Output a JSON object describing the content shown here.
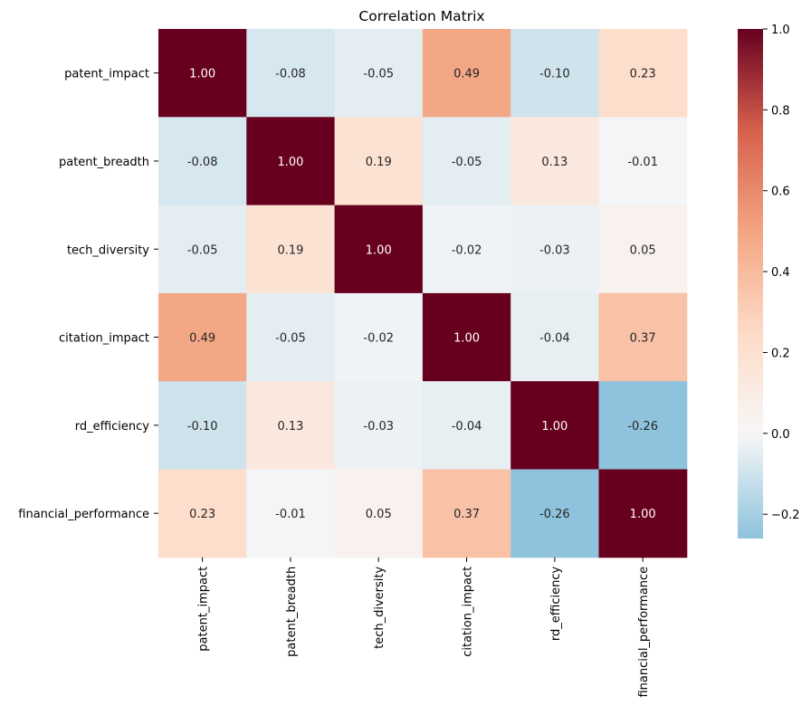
{
  "chart_data": {
    "type": "heatmap",
    "title": "Correlation Matrix",
    "xlabel": "",
    "ylabel": "",
    "row_labels": [
      "patent_impact",
      "patent_breadth",
      "tech_diversity",
      "citation_impact",
      "rd_efficiency",
      "financial_performance"
    ],
    "col_labels": [
      "patent_impact",
      "patent_breadth",
      "tech_diversity",
      "citation_impact",
      "rd_efficiency",
      "financial_performance"
    ],
    "values": [
      [
        1.0,
        -0.08,
        -0.05,
        0.49,
        -0.1,
        0.23
      ],
      [
        -0.08,
        1.0,
        0.19,
        -0.05,
        0.13,
        -0.01
      ],
      [
        -0.05,
        0.19,
        1.0,
        -0.02,
        -0.03,
        0.05
      ],
      [
        0.49,
        -0.05,
        -0.02,
        1.0,
        -0.04,
        0.37
      ],
      [
        -0.1,
        0.13,
        -0.03,
        -0.04,
        1.0,
        -0.26
      ],
      [
        0.23,
        -0.01,
        0.05,
        0.37,
        -0.26,
        1.0
      ]
    ],
    "annotations": [
      [
        "1.00",
        "-0.08",
        "-0.05",
        "0.49",
        "-0.10",
        "0.23"
      ],
      [
        "-0.08",
        "1.00",
        "0.19",
        "-0.05",
        "0.13",
        "-0.01"
      ],
      [
        "-0.05",
        "0.19",
        "1.00",
        "-0.02",
        "-0.03",
        "0.05"
      ],
      [
        "0.49",
        "-0.05",
        "-0.02",
        "1.00",
        "-0.04",
        "0.37"
      ],
      [
        "-0.10",
        "0.13",
        "-0.03",
        "-0.04",
        "1.00",
        "-0.26"
      ],
      [
        "0.23",
        "-0.01",
        "0.05",
        "0.37",
        "-0.26",
        "1.00"
      ]
    ],
    "colormap": "RdBu_r",
    "center": 0,
    "vmin": -0.26,
    "vmax": 1.0,
    "colorbar_ticks": [
      -0.2,
      0.0,
      0.2,
      0.4,
      0.6,
      0.8,
      1.0
    ],
    "colorbar_tick_labels": [
      "−0.2",
      "0.0",
      "0.2",
      "0.4",
      "0.6",
      "0.8",
      "1.0"
    ]
  }
}
